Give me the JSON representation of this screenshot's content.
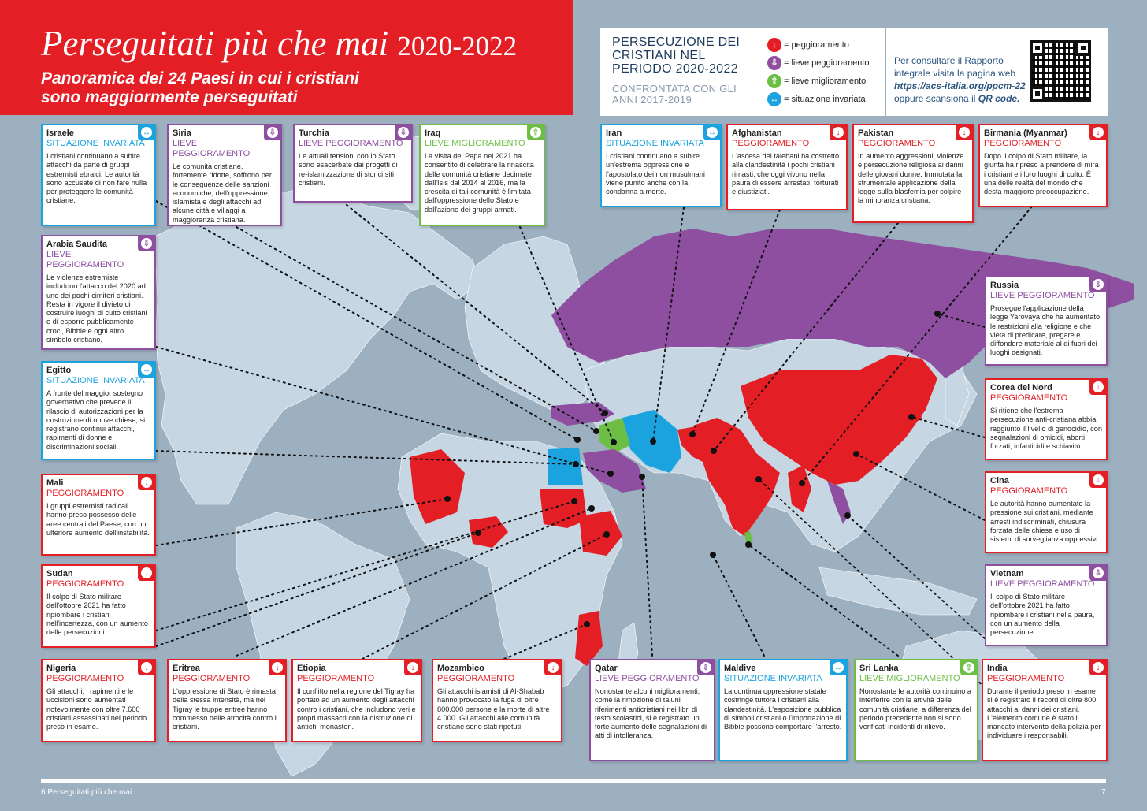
{
  "header": {
    "title": "Perseguitati più che mai",
    "years": "2020-2022",
    "subtitle": "Panoramica dei 24 Paesi in cui i cristiani sono maggiormente perseguitati"
  },
  "legend": {
    "title": "PERSECUZIONE DEI CRISTIANI NEL PERIODO 2020-2022",
    "subtitle": "CONFRONTATA CON GLI ANNI 2017-2019",
    "items": [
      {
        "label": "= peggioramento",
        "color": "#e31e24",
        "icon": "arrow-down-icon"
      },
      {
        "label": "= lieve peggioramento",
        "color": "#8e4fa0",
        "icon": "arrow-down-outline-icon"
      },
      {
        "label": "= lieve miglioramento",
        "color": "#6dbe45",
        "icon": "arrow-up-outline-icon"
      },
      {
        "label": "= situazione invariata",
        "color": "#1aa3de",
        "icon": "arrow-both-icon"
      }
    ],
    "info_line1": "Per consultare il Rapporto integrale visita la pagina web",
    "url": "https://acs-italia.org/ppcm-22",
    "info_line2": "oppure scansiona il",
    "qr_label": "QR code."
  },
  "colors": {
    "peggioramento": "#e31e24",
    "lieve_peggioramento": "#8e4fa0",
    "lieve_miglioramento": "#6dbe45",
    "invariata": "#1aa3de",
    "sea": "#9db0c0",
    "land": "#c7d6e3"
  },
  "countries": {
    "israele": {
      "name": "Israele",
      "status": "SITUAZIONE INVARIATA",
      "text": "I cristiani continuano a subire attacchi da parte di gruppi estremisti ebraici. Le autorità sono accusate di non fare nulla per proteggere le comunità cristiane."
    },
    "siria": {
      "name": "Siria",
      "status": "LIEVE PEGGIORAMENTO",
      "text": "Le comunità cristiane, fortemente ridotte, soffrono per le conseguenze delle sanzioni economiche, dell'oppressione, islamista e degli attacchi ad alcune città e villaggi a maggioranza cristiana."
    },
    "turchia": {
      "name": "Turchia",
      "status": "LIEVE PEGGIORAMENTO",
      "text": "Le attuali tensioni con lo Stato sono esacerbate dai progetti di re-islamizzazione di storici siti cristiani."
    },
    "iraq": {
      "name": "Iraq",
      "status": "LIEVE MIGLIORAMENTO",
      "text": "La visita del Papa nel 2021 ha consentito di celebrare la rinascita delle comunità cristiane decimate dall'Isis dal 2014 al 2016, ma la crescita di tali comunità è limitata dall'oppressione dello Stato e dall'azione dei gruppi armati."
    },
    "iran": {
      "name": "Iran",
      "status": "SITUAZIONE INVARIATA",
      "text": "I cristiani continuano a subire un'estrema oppressione e l'apostolato dei non musulmani viene punito anche con la condanna a morte."
    },
    "afghanistan": {
      "name": "Afghanistan",
      "status": "PEGGIORAMENTO",
      "text": "L'ascesa dei talebani ha costretto alla clandestinità i pochi cristiani rimasti, che oggi vivono nella paura di essere arrestati, torturati e giustiziati."
    },
    "pakistan": {
      "name": "Pakistan",
      "status": "PEGGIORAMENTO",
      "text": "In aumento aggressioni, violenze e persecuzione religiosa ai danni delle giovani donne. Immutata la strumentale applicazione della legge sulla blasfemia per colpire la minoranza cristiana."
    },
    "birmania": {
      "name": "Birmania (Myanmar)",
      "status": "PEGGIORAMENTO",
      "text": "Dopo il colpo di Stato militare, la giunta ha ripreso a prendere di mira i cristiani e i loro luoghi di culto. È una delle realtà del mondo che desta maggiore preoccupazione."
    },
    "arabia": {
      "name": "Arabia Saudita",
      "status": "LIEVE PEGGIORAMENTO",
      "text": "Le violenze estremiste includono l'attacco del 2020 ad uno dei pochi cimiteri cristiani. Resta in vigore il divieto di costruire luoghi di culto cristiani e di esporre pubblicamente croci, Bibbie e ogni altro simbolo cristiano."
    },
    "russia": {
      "name": "Russia",
      "status": "LIEVE PEGGIORAMENTO",
      "text": "Prosegue l'applicazione della legge Yarovaya che ha aumentato le restrizioni alla religione e che vieta di predicare, pregare e diffondere materiale al di fuori dei luoghi designati."
    },
    "egitto": {
      "name": "Egitto",
      "status": "SITUAZIONE INVARIATA",
      "text": "A fronte del maggior sostegno governativo che prevede il rilascio di autorizzazioni per la costruzione di nuove chiese, si registrano continui attacchi, rapimenti di donne e discriminazioni sociali."
    },
    "corea": {
      "name": "Corea del Nord",
      "status": "PEGGIORAMENTO",
      "text": "Si ritiene che l'estrema persecuzione anti-cristiana abbia raggiunto il livello di genocidio, con segnalazioni di omicidi, aborti forzati, infanticidi e schiavitù."
    },
    "mali": {
      "name": "Mali",
      "status": "PEGGIORAMENTO",
      "text": "I gruppi estremisti radicali hanno preso possesso delle aree centrali del Paese, con un ulteriore aumento dell'instabilità."
    },
    "cina": {
      "name": "Cina",
      "status": "PEGGIORAMENTO",
      "text": "Le autorità hanno aumentato la pressione sui cristiani, mediante arresti indiscriminati, chiusura forzata delle chiese e uso di sistemi di sorveglianza oppressivi."
    },
    "sudan": {
      "name": "Sudan",
      "status": "PEGGIORAMENTO",
      "text": "Il colpo di Stato militare dell'ottobre 2021 ha fatto ripiombare i cristiani nell'incertezza, con un aumento delle persecuzioni."
    },
    "vietnam": {
      "name": "Vietnam",
      "status": "LIEVE PEGGIORAMENTO",
      "text": "Il colpo di Stato militare dell'ottobre 2021 ha fatto ripiombare i cristiani nella paura, con un aumento della persecuzione."
    },
    "nigeria": {
      "name": "Nigeria",
      "status": "PEGGIORAMENTO",
      "text": "Gli attacchi, i rapimenti e le uccisioni sono aumentati notevolmente con oltre 7.600 cristiani assassinati nel periodo preso in esame."
    },
    "eritrea": {
      "name": "Eritrea",
      "status": "PEGGIORAMENTO",
      "text": "L'oppressione di Stato è rimasta della stessa intensità, ma nel Tigray le truppe eritree hanno commesso delle atrocità contro i cristiani."
    },
    "etiopia": {
      "name": "Etiopia",
      "status": "PEGGIORAMENTO",
      "text": "Il conflitto nella regione del Tigray ha portato ad un aumento degli attacchi contro i cristiani, che includono veri e propri massacri con la distruzione di antichi monasteri."
    },
    "mozambico": {
      "name": "Mozambico",
      "status": "PEGGIORAMENTO",
      "text": "Gli attacchi islamisti di Al-Shabab hanno provocato la fuga di oltre 800.000 persone e la morte di altre 4.000. Gli attacchi alle comunità cristiane sono stati ripetuti."
    },
    "qatar": {
      "name": "Qatar",
      "status": "LIEVE PEGGIORAMENTO",
      "text": "Nonostante alcuni miglioramenti, come la rimozione di taluni riferimenti anticristiani nei libri di testo scolastici, si è registrato un forte aumento delle segnalazioni di atti di intolleranza."
    },
    "maldive": {
      "name": "Maldive",
      "status": "SITUAZIONE INVARIATA",
      "text": "La continua oppressione statale costringe tuttora i cristiani alla clandestinità. L'esposizione pubblica di simboli cristiani o l'importazione di Bibbie possono comportare l'arresto."
    },
    "srilanka": {
      "name": "Sri Lanka",
      "status": "LIEVE MIGLIORAMENTO",
      "text": "Nonostante le autorità continuino a interferire con le attività delle comunità cristiane, a differenza del periodo precedente non si sono verificati incidenti di rilievo."
    },
    "india": {
      "name": "India",
      "status": "PEGGIORAMENTO",
      "text": "Durante il periodo preso in esame si è registrato il record di oltre 800 attacchi ai danni dei cristiani. L'elemento comune è stato il mancato intervento della polizia per individuare i responsabili."
    }
  },
  "footer": {
    "left": "6    Perseguitati più che mai",
    "right": "7"
  }
}
